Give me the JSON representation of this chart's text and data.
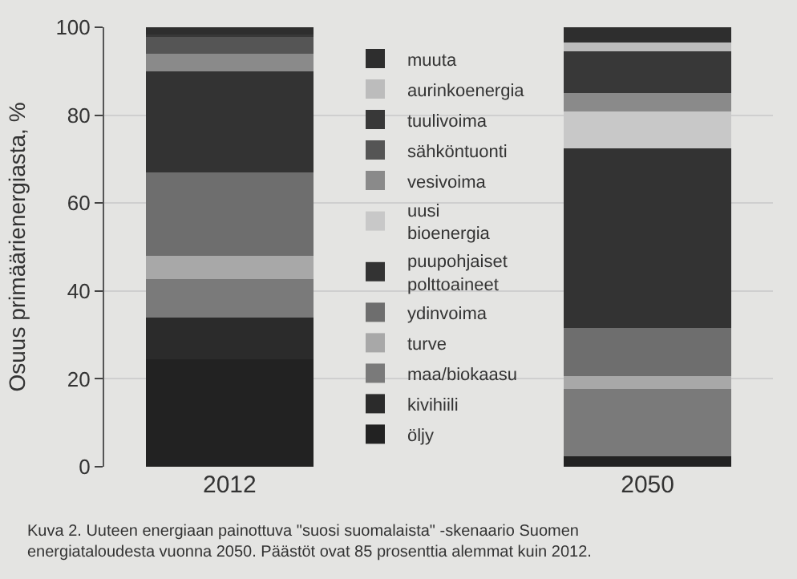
{
  "chart_data": {
    "type": "bar",
    "stacked": true,
    "categories": [
      "2012",
      "2050"
    ],
    "ylabel": "Osuus primäärienergiasta, %",
    "ylim": [
      0,
      100
    ],
    "yticks": [
      0,
      20,
      40,
      60,
      80,
      100
    ],
    "grid": "y",
    "legend": "center",
    "series": [
      {
        "name": "öljy",
        "color": "#222222",
        "values": [
          24.5,
          2.4
        ]
      },
      {
        "name": "kivihiili",
        "color": "#2b2b2b",
        "values": [
          9.5,
          0
        ]
      },
      {
        "name": "maa/biokaasu",
        "color": "#7a7a7a",
        "values": [
          8.7,
          15.3
        ]
      },
      {
        "name": "turve",
        "color": "#a8a8a8",
        "values": [
          5.3,
          3
        ]
      },
      {
        "name": "ydinvoima",
        "color": "#6e6e6e",
        "values": [
          18.9,
          10.8
        ]
      },
      {
        "name": "puupohjaiset polttoaineet",
        "color": "#333333",
        "values": [
          23,
          40.9
        ]
      },
      {
        "name": "uusi bioenergia",
        "color": "#c8c8c8",
        "values": [
          0,
          8.4
        ]
      },
      {
        "name": "vesivoima",
        "color": "#8a8a8a",
        "values": [
          4,
          4.2
        ]
      },
      {
        "name": "sähköntuonti",
        "color": "#555555",
        "values": [
          4,
          0
        ]
      },
      {
        "name": "tuulivoima",
        "color": "#383838",
        "values": [
          0.5,
          9.6
        ]
      },
      {
        "name": "aurinkoenergia",
        "color": "#bcbcbc",
        "values": [
          0,
          2
        ]
      },
      {
        "name": "muuta",
        "color": "#2e2e2e",
        "values": [
          1.6,
          3.4
        ]
      }
    ],
    "annotations": [
      "Kuva 2. Uuteen energiaan painottuva \"suosi suomalaista\" -skenaario Suomen energiataloudesta vuonna 2050. Päästöt ovat 85 prosenttia alemmat kuin 2012."
    ]
  }
}
